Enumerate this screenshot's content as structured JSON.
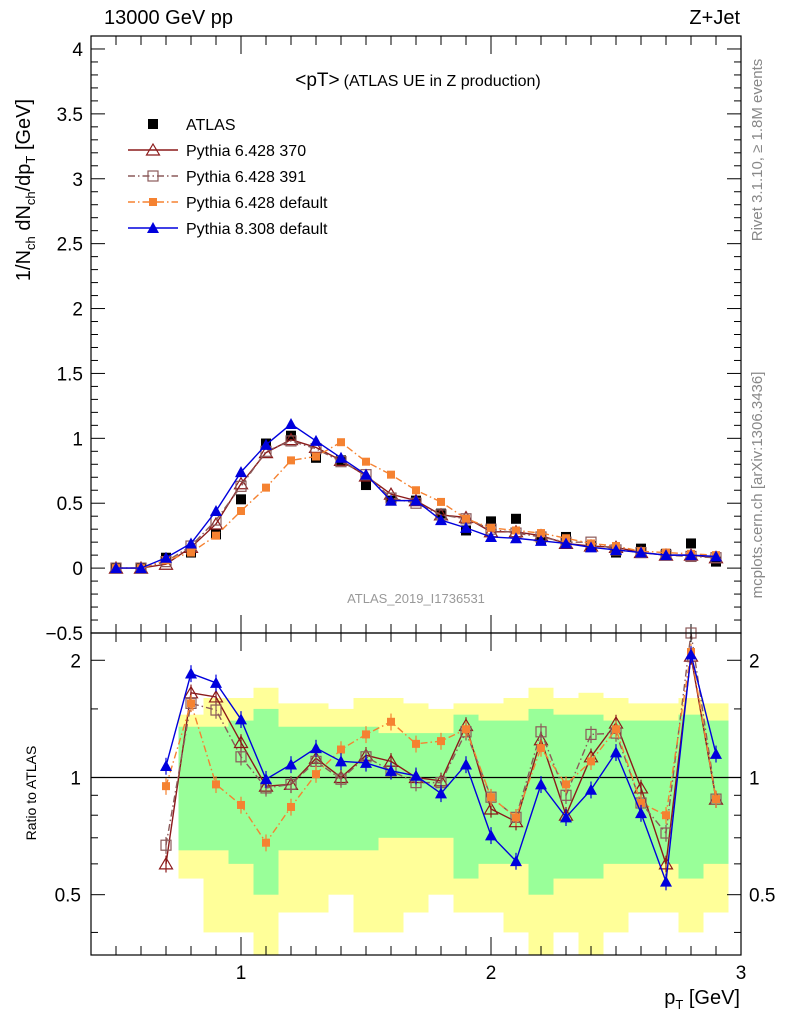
{
  "header": {
    "left": "13000 GeV pp",
    "right": "Z+Jet"
  },
  "side_labels": {
    "rivet": "Rivet 3.1.10, ≥ 1.8M events",
    "mcplots": "mcplots.cern.ch [arXiv:1306.3436]"
  },
  "chart_data": [
    {
      "type": "line",
      "title_main": "<pT>",
      "title_sub": "(ATLAS UE in Z production)",
      "analysis_id": "ATLAS_2019_I1736531",
      "ylabel": "1/N_ch dN_ch/dp_T [GeV]",
      "ylim": [
        -0.5,
        4.1
      ],
      "xlim": [
        0.4,
        3.0
      ],
      "y_ticks": [
        "−0.5",
        "0",
        "0.5",
        "1",
        "1.5",
        "2",
        "2.5",
        "3",
        "3.5",
        "4"
      ],
      "legend_placement": "top-left",
      "x": [
        0.5,
        0.6,
        0.7,
        0.8,
        0.9,
        1.0,
        1.1,
        1.2,
        1.3,
        1.4,
        1.5,
        1.6,
        1.7,
        1.8,
        1.9,
        2.0,
        2.1,
        2.2,
        2.3,
        2.4,
        2.5,
        2.6,
        2.7,
        2.8,
        2.9
      ],
      "series": [
        {
          "name": "ATLAS",
          "color": "#000000",
          "marker": "square-filled",
          "values": [
            0.0,
            0.0,
            0.08,
            0.12,
            0.26,
            0.53,
            0.96,
            1.02,
            0.85,
            0.83,
            0.64,
            0.52,
            0.52,
            0.42,
            0.29,
            0.36,
            0.38,
            0.22,
            0.24,
            0.17,
            0.12,
            0.15,
            0.11,
            0.19,
            0.05
          ]
        },
        {
          "name": "Pythia 6.428 370",
          "color": "#8b1a1a",
          "marker": "triangle-open",
          "dash": "",
          "values": [
            0.0,
            0.0,
            0.03,
            0.16,
            0.34,
            0.65,
            0.89,
            0.99,
            0.93,
            0.83,
            0.71,
            0.57,
            0.52,
            0.41,
            0.39,
            0.28,
            0.28,
            0.25,
            0.19,
            0.17,
            0.16,
            0.12,
            0.1,
            0.1,
            0.08
          ]
        },
        {
          "name": "Pythia 6.428 391",
          "color": "#8b5a5a",
          "marker": "square-open",
          "dash": "7,3,1.5,3",
          "values": [
            0.0,
            0.0,
            0.05,
            0.17,
            0.37,
            0.63,
            0.9,
            0.98,
            0.92,
            0.82,
            0.72,
            0.54,
            0.5,
            0.41,
            0.38,
            0.3,
            0.27,
            0.24,
            0.2,
            0.2,
            0.14,
            0.12,
            0.1,
            0.09,
            0.08
          ]
        },
        {
          "name": "Pythia 6.428 default",
          "color": "#f58231",
          "marker": "square-filled-small",
          "dash": "7,3,1.5,3",
          "values": [
            0.0,
            0.0,
            0.06,
            0.12,
            0.25,
            0.44,
            0.62,
            0.83,
            0.86,
            0.97,
            0.82,
            0.72,
            0.6,
            0.51,
            0.38,
            0.31,
            0.29,
            0.27,
            0.23,
            0.19,
            0.17,
            0.13,
            0.12,
            0.11,
            0.1
          ]
        },
        {
          "name": "Pythia 8.308 default",
          "color": "#0000dd",
          "marker": "triangle-filled",
          "dash": "",
          "values": [
            0.0,
            0.0,
            0.08,
            0.19,
            0.44,
            0.74,
            0.95,
            1.11,
            0.98,
            0.85,
            0.72,
            0.52,
            0.52,
            0.37,
            0.31,
            0.24,
            0.23,
            0.21,
            0.19,
            0.16,
            0.14,
            0.12,
            0.1,
            0.1,
            0.09
          ]
        }
      ]
    },
    {
      "type": "line",
      "ylabel": "Ratio to ATLAS",
      "xlabel": "p_T [GeV]",
      "ylim": [
        0.35,
        2.35
      ],
      "y_scale": "log",
      "y_ticks": [
        "0.5",
        "1",
        "2"
      ],
      "x_ticks": [
        "1",
        "2",
        "3"
      ],
      "reference_line": 1.0,
      "x": [
        0.7,
        0.8,
        0.9,
        1.0,
        1.1,
        1.2,
        1.3,
        1.4,
        1.5,
        1.6,
        1.7,
        1.8,
        1.9,
        2.0,
        2.1,
        2.2,
        2.3,
        2.4,
        2.5,
        2.6,
        2.7,
        2.8,
        2.9
      ],
      "bands": {
        "green_halfwidth": [
          0.0,
          0.35,
          0.35,
          0.4,
          0.5,
          0.35,
          0.35,
          0.35,
          0.35,
          0.3,
          0.3,
          0.3,
          0.45,
          0.4,
          0.4,
          0.5,
          0.45,
          0.45,
          0.4,
          0.4,
          0.4,
          0.45,
          0.4
        ],
        "yellow_halfwidth": [
          0.0,
          0.45,
          0.6,
          0.6,
          0.7,
          0.55,
          0.55,
          0.5,
          0.6,
          0.6,
          0.55,
          0.5,
          0.55,
          0.55,
          0.6,
          0.7,
          0.6,
          0.65,
          0.6,
          0.55,
          0.55,
          0.6,
          0.55
        ]
      },
      "series": [
        {
          "name": "Pythia 6.428 370",
          "values": [
            0.6,
            1.65,
            1.61,
            1.23,
            0.95,
            0.96,
            1.12,
            1.0,
            1.14,
            1.1,
            1.0,
            0.98,
            1.36,
            0.83,
            0.77,
            1.25,
            0.8,
            1.13,
            1.38,
            0.94,
            0.6,
            2.05,
            0.88
          ]
        },
        {
          "name": "Pythia 6.428 391",
          "values": [
            0.67,
            1.55,
            1.49,
            1.13,
            0.94,
            0.96,
            1.1,
            0.99,
            1.13,
            1.04,
            0.97,
            0.97,
            1.31,
            0.89,
            0.79,
            1.31,
            0.9,
            1.29,
            1.3,
            0.86,
            0.72,
            2.4,
            0.88
          ]
        },
        {
          "name": "Pythia 6.428 default",
          "values": [
            0.95,
            1.55,
            0.96,
            0.85,
            0.68,
            0.84,
            1.02,
            1.18,
            1.29,
            1.39,
            1.22,
            1.24,
            1.33,
            0.89,
            0.79,
            1.19,
            0.96,
            1.1,
            1.33,
            0.86,
            0.8,
            2.1,
            0.88
          ]
        },
        {
          "name": "Pythia 8.308 default",
          "values": [
            1.07,
            1.85,
            1.75,
            1.41,
            0.99,
            1.08,
            1.19,
            1.1,
            1.09,
            1.04,
            1.01,
            0.91,
            1.08,
            0.71,
            0.61,
            0.96,
            0.79,
            0.93,
            1.16,
            0.81,
            0.54,
            2.07,
            1.15
          ]
        }
      ]
    }
  ]
}
